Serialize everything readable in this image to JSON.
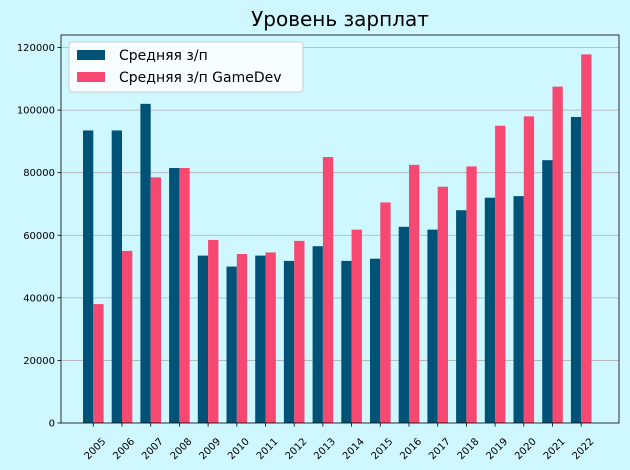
{
  "chart_data": {
    "type": "bar",
    "title": "Уровень зарплат",
    "xlabel": "",
    "ylabel": "",
    "categories": [
      "2005",
      "2006",
      "2007",
      "2008",
      "2009",
      "2010",
      "2011",
      "2012",
      "2013",
      "2014",
      "2015",
      "2016",
      "2017",
      "2018",
      "2019",
      "2020",
      "2021",
      "2022"
    ],
    "series": [
      {
        "name": "Средняя з/п",
        "color": "#005377",
        "values": [
          93500,
          93500,
          102000,
          81500,
          53500,
          50000,
          53500,
          51800,
          56500,
          51800,
          52500,
          62700,
          61800,
          68000,
          72000,
          72500,
          84000,
          97800
        ]
      },
      {
        "name": "Средняя з/п GameDev",
        "color": "#f64870",
        "values": [
          38000,
          55000,
          78500,
          81500,
          58500,
          54000,
          54500,
          58200,
          85000,
          61800,
          70500,
          82500,
          75500,
          82000,
          95000,
          98000,
          107500,
          117800
        ]
      }
    ],
    "ylim": [
      0,
      124000
    ],
    "yticks": [
      0,
      20000,
      40000,
      60000,
      80000,
      100000,
      120000
    ],
    "grid": "y",
    "legend": "top-left",
    "background": "#cff7ff"
  }
}
